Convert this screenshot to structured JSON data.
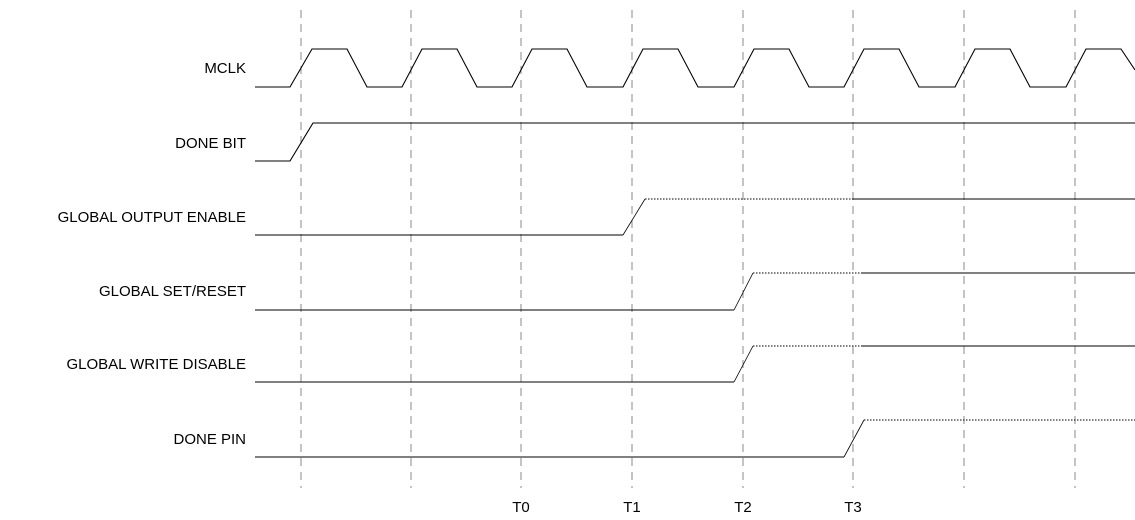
{
  "signals": [
    {
      "id": "mclk",
      "label": "MCLK"
    },
    {
      "id": "done-bit",
      "label": "DONE BIT"
    },
    {
      "id": "global-output-enable",
      "label": "GLOBAL OUTPUT ENABLE"
    },
    {
      "id": "global-set-reset",
      "label": "GLOBAL SET/RESET"
    },
    {
      "id": "global-write-disable",
      "label": "GLOBAL WRITE DISABLE"
    },
    {
      "id": "done-pin",
      "label": "DONE PIN"
    }
  ],
  "time_markers": [
    {
      "id": "t0",
      "label": "T0"
    },
    {
      "id": "t1",
      "label": "T1"
    },
    {
      "id": "t2",
      "label": "T2"
    },
    {
      "id": "t3",
      "label": "T3"
    }
  ],
  "colors": {
    "line": "#000000",
    "grid": "#888888",
    "background": "#ffffff"
  }
}
